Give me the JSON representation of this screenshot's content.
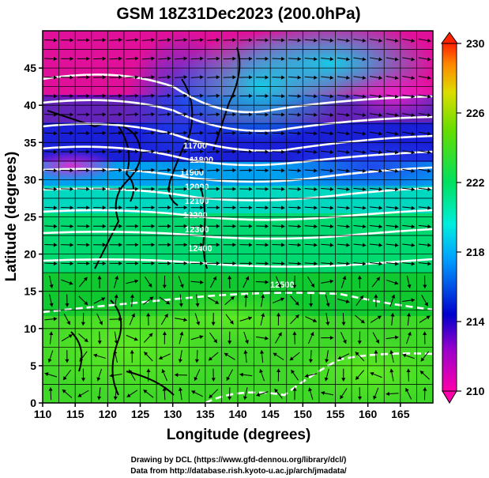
{
  "title": "GSM 18Z31Dec2023 (200.0hPa)",
  "xlabel": "Longitude (degrees)",
  "ylabel": "Latitude  (degrees)",
  "x_ticks": [
    "110",
    "115",
    "120",
    "125",
    "130",
    "135",
    "140",
    "145",
    "150",
    "155",
    "160",
    "165"
  ],
  "y_ticks": [
    "0",
    "5",
    "10",
    "15",
    "20",
    "25",
    "30",
    "35",
    "40",
    "45"
  ],
  "colorbar_ticks": [
    "210",
    "214",
    "218",
    "222",
    "226",
    "230"
  ],
  "contour_labels": [
    "11700",
    "11800",
    "11900",
    "12000",
    "12100",
    "12200",
    "12300",
    "12400",
    "12500"
  ],
  "credits": {
    "line1": "Drawing by DCL (https://www.gfd-dennou.org/library/dcl/)",
    "line2": "Data from http://database.rish.kyoto-u.ac.jp/arch/jmadata/"
  },
  "colors": {
    "low": "#ff0099",
    "mid_low": "#0000cc",
    "mid": "#00e5ff",
    "mid_high": "#33dd33",
    "high": "#ff3300",
    "contour": "#ffffff",
    "arrows": "#000000"
  },
  "chart_data": {
    "type": "heatmap",
    "variable": "temperature (K) with geopotential height contours (m) and wind streamlines",
    "xlim": [
      110,
      170
    ],
    "ylim": [
      0,
      50
    ],
    "colorbar_range": [
      210,
      230
    ],
    "contour_levels": [
      11700,
      11800,
      11900,
      12000,
      12100,
      12200,
      12300,
      12400,
      12500
    ]
  }
}
